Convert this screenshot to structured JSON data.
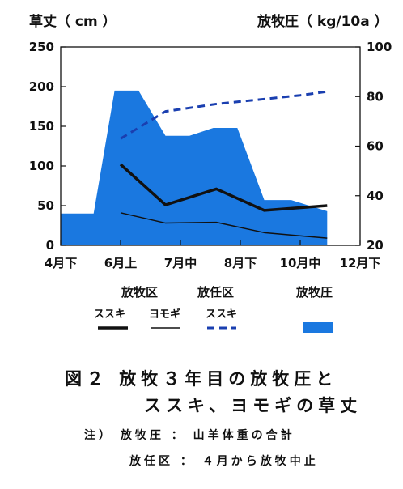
{
  "chart_data": {
    "type": "area",
    "left_axis_title": "草丈（ cm ）",
    "right_axis_title": "放牧圧（ kg/10a ）",
    "x_tick_labels": [
      "4月下",
      "6月上",
      "7月中",
      "8月下",
      "10月中",
      "12月下"
    ],
    "y_left": {
      "ylim": [
        0,
        250
      ],
      "ticks": [
        "0",
        "50",
        "100",
        "150",
        "200",
        "250"
      ]
    },
    "y_right": {
      "ylim": [
        20,
        100
      ],
      "ticks": [
        "20",
        "40",
        "60",
        "80",
        "100"
      ]
    },
    "grid": false,
    "area_series": {
      "color": "#1a78e0",
      "points": [
        [
          0,
          40
        ],
        [
          0.55,
          40
        ],
        [
          0.9,
          195
        ],
        [
          1.3,
          195
        ],
        [
          1.75,
          138
        ],
        [
          2.15,
          138
        ],
        [
          2.55,
          148
        ],
        [
          2.95,
          148
        ],
        [
          3.4,
          57
        ],
        [
          3.85,
          57
        ],
        [
          4.45,
          43
        ]
      ]
    },
    "line_series": [
      {
        "axis": "left",
        "color": "#111111",
        "width": 3.5,
        "dash": "",
        "points": [
          [
            1.0,
            102
          ],
          [
            1.75,
            51
          ],
          [
            2.6,
            71
          ],
          [
            3.4,
            44
          ],
          [
            4.45,
            50
          ]
        ]
      },
      {
        "axis": "left",
        "color": "#111111",
        "width": 1.5,
        "dash": "",
        "points": [
          [
            1.0,
            41
          ],
          [
            1.75,
            28
          ],
          [
            2.6,
            29
          ],
          [
            3.4,
            16
          ],
          [
            4.45,
            9
          ]
        ]
      },
      {
        "axis": "right",
        "color": "#1a3fb0",
        "width": 3,
        "dash": "9,6",
        "points": [
          [
            1.0,
            63
          ],
          [
            1.75,
            74
          ],
          [
            2.6,
            77
          ],
          [
            3.4,
            79
          ],
          [
            4.0,
            80.5
          ],
          [
            4.45,
            82
          ]
        ]
      }
    ]
  },
  "legend": {
    "group_grazed": "放牧区",
    "group_ungrazed": "放任区",
    "pressure": "放牧圧",
    "susuki_1": "ススキ",
    "yomogi": "ヨモギ",
    "susuki_2": "ススキ",
    "colors": {
      "grazed_susuki": "#111111",
      "yomogi": "#111111",
      "ungrazed_susuki": "#1a3fb0",
      "pressure": "#1a78e0"
    }
  },
  "caption": {
    "line1": "図２ 放牧３年目の放牧圧と",
    "line2": "ススキ、ヨモギの草丈"
  },
  "notes": {
    "line1": "注） 放牧圧 ： 山羊体重の合計",
    "line2": "放任区 ： ４月から放牧中止"
  }
}
